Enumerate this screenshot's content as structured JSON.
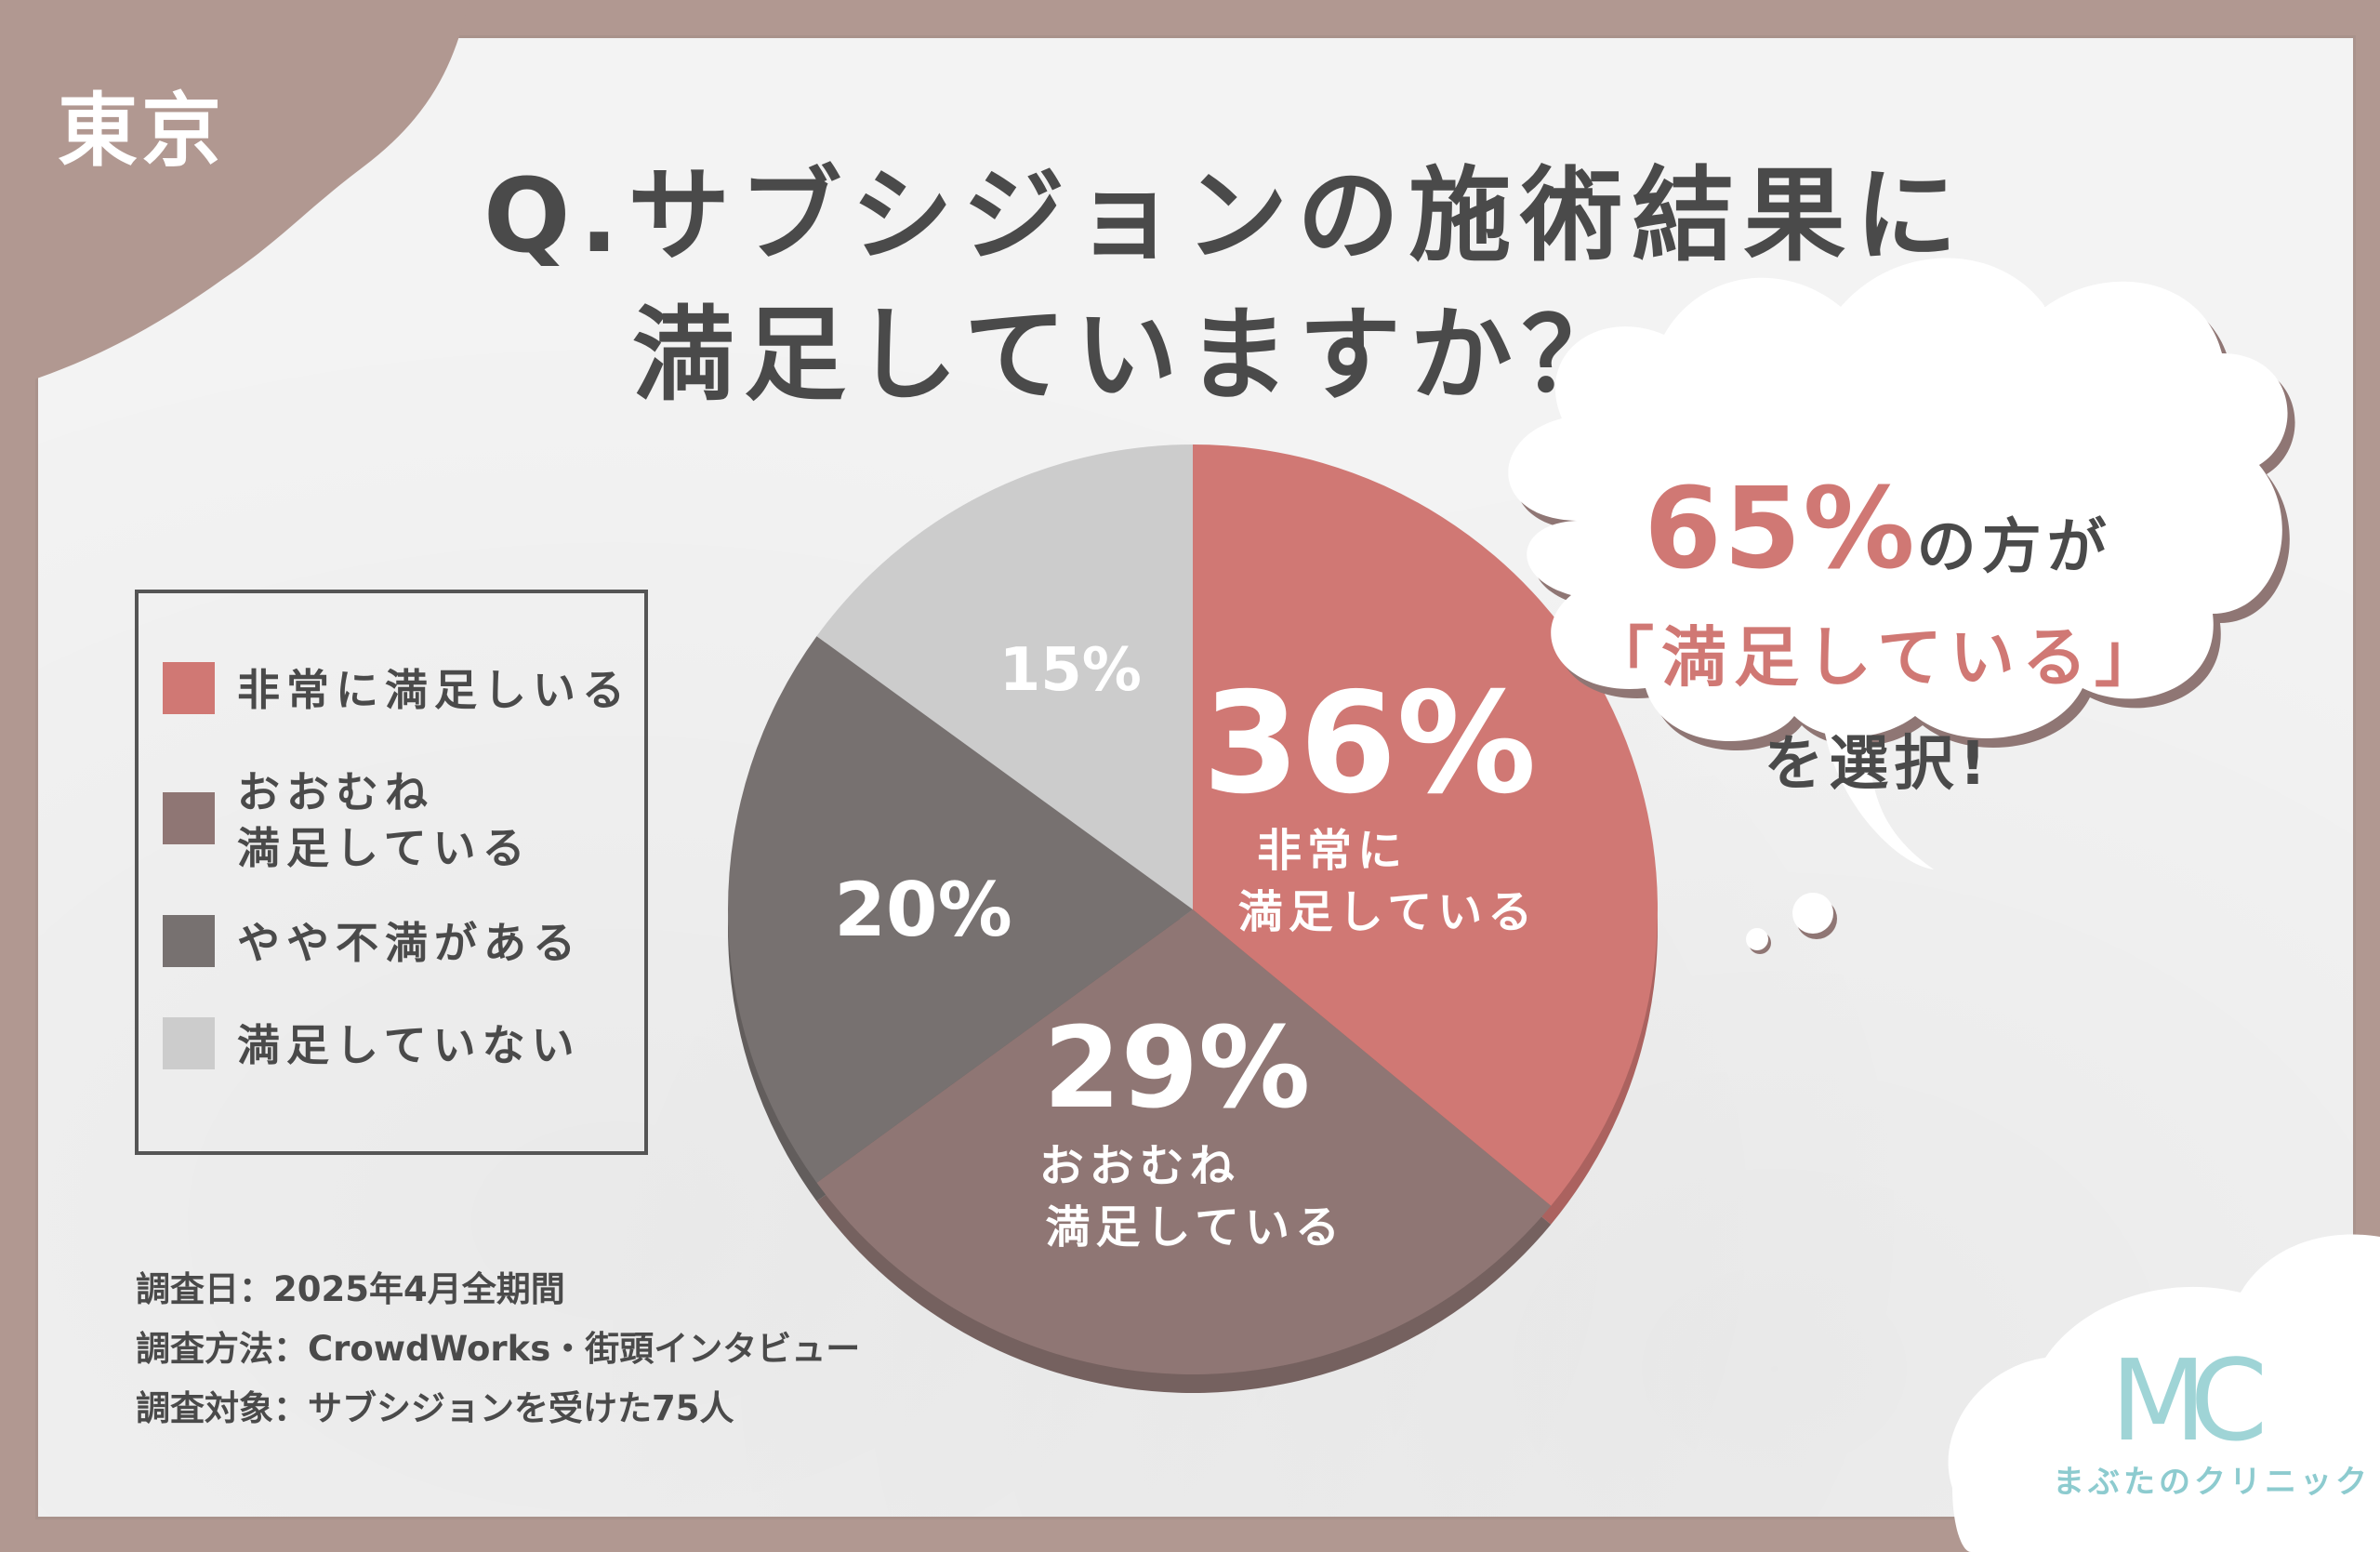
{
  "region": "東京",
  "title": {
    "line1": "Q.サブシジョンの施術結果に",
    "line2": "満足していますか？"
  },
  "legend": [
    {
      "label": "非常に満足しいる",
      "color": "#d07874"
    },
    {
      "label": "おおむね\n満足している",
      "color": "#8f7674"
    },
    {
      "label": "やや不満がある",
      "color": "#777170"
    },
    {
      "label": "満足していない",
      "color": "#cccccc"
    }
  ],
  "chart_data": {
    "type": "pie",
    "title": "Q.サブシジョンの施術結果に満足していますか？",
    "slices": [
      {
        "label": "非常に満足している",
        "value": 36,
        "color": "#d07874",
        "pct_text": "36%",
        "label_lines": [
          "非常に",
          "満足している"
        ]
      },
      {
        "label": "おおむね満足している",
        "value": 29,
        "color": "#8f7674",
        "pct_text": "29%",
        "label_lines": [
          "おおむね",
          "満足している"
        ]
      },
      {
        "label": "やや不満がある",
        "value": 20,
        "color": "#777170",
        "pct_text": "20%",
        "label_lines": []
      },
      {
        "label": "満足していない",
        "value": 15,
        "color": "#cccccc",
        "pct_text": "15%",
        "label_lines": []
      }
    ]
  },
  "callout": {
    "percent": "65%",
    "line1_suffix": "の方が",
    "line2": "「満足している」",
    "line3": "を選択!"
  },
  "survey": {
    "date": "調査日：2025年4月全期間",
    "method": "調査方法：CrowdWorks・街頭インタビュー",
    "target": "調査対象：サブシジョンを受けた75人"
  },
  "logo": {
    "mark": "MC",
    "name": "まぶたのクリニック"
  }
}
